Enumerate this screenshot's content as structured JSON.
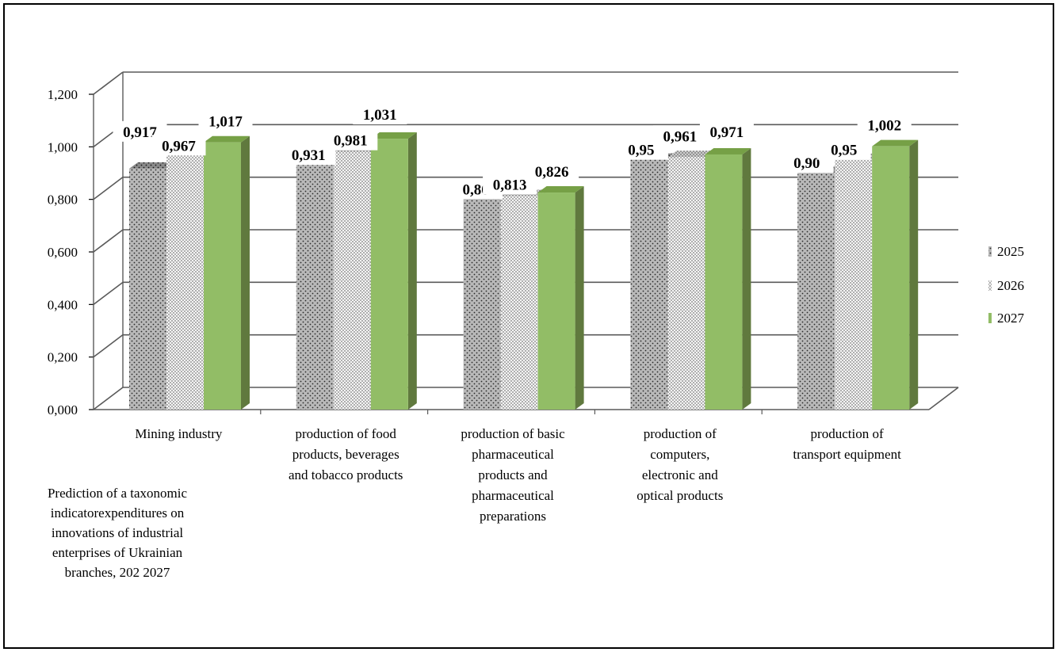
{
  "chart_data": {
    "type": "bar",
    "title": "",
    "xlabel": "",
    "ylabel": "",
    "ylim": [
      0,
      1.2
    ],
    "yticks": [
      "0,000",
      "0,200",
      "0,400",
      "0,600",
      "0,800",
      "1,000",
      "1,200"
    ],
    "grid": true,
    "legend_position": "right",
    "categories": [
      [
        "Mining industry"
      ],
      [
        "production of food",
        "products, beverages",
        "and tobacco products"
      ],
      [
        "production of basic",
        "pharmaceutical",
        "products and",
        "pharmaceutical",
        "preparations"
      ],
      [
        "production of",
        "computers,",
        "electronic and",
        "optical products"
      ],
      [
        "production of",
        "transport equipment"
      ]
    ],
    "series": [
      {
        "name": "2025",
        "values": [
          0.917,
          0.931,
          0.801,
          0.951,
          0.901
        ],
        "labels": [
          "0,917",
          "0,931",
          "0,80",
          "0,95",
          "0,90"
        ]
      },
      {
        "name": "2026",
        "values": [
          0.967,
          0.981,
          0.813,
          0.961,
          0.951
        ],
        "labels": [
          "0,967",
          "0,981",
          "0,813",
          "0,961",
          "0,95"
        ]
      },
      {
        "name": "2027",
        "values": [
          1.017,
          1.031,
          0.826,
          0.971,
          1.002
        ],
        "labels": [
          "1,017",
          "1,031",
          "0,826",
          "0,971",
          "1,002"
        ]
      }
    ],
    "colors": {
      "s2025_front": "#b9b9b9",
      "s2025_side": "#8a8a8a",
      "s2026_front": "#f2f2f2",
      "s2026_side": "#c9c9c9",
      "s2027_front": "#92bd66",
      "s2027_side": "#60793e",
      "s2027_top": "#76a046"
    },
    "note_lines": [
      "Prediction  of a taxonomic",
      "indicatorexpenditures  on",
      "innovations  of industrial",
      "enterprises  of Ukrainian",
      "branches,  202    2027"
    ]
  }
}
